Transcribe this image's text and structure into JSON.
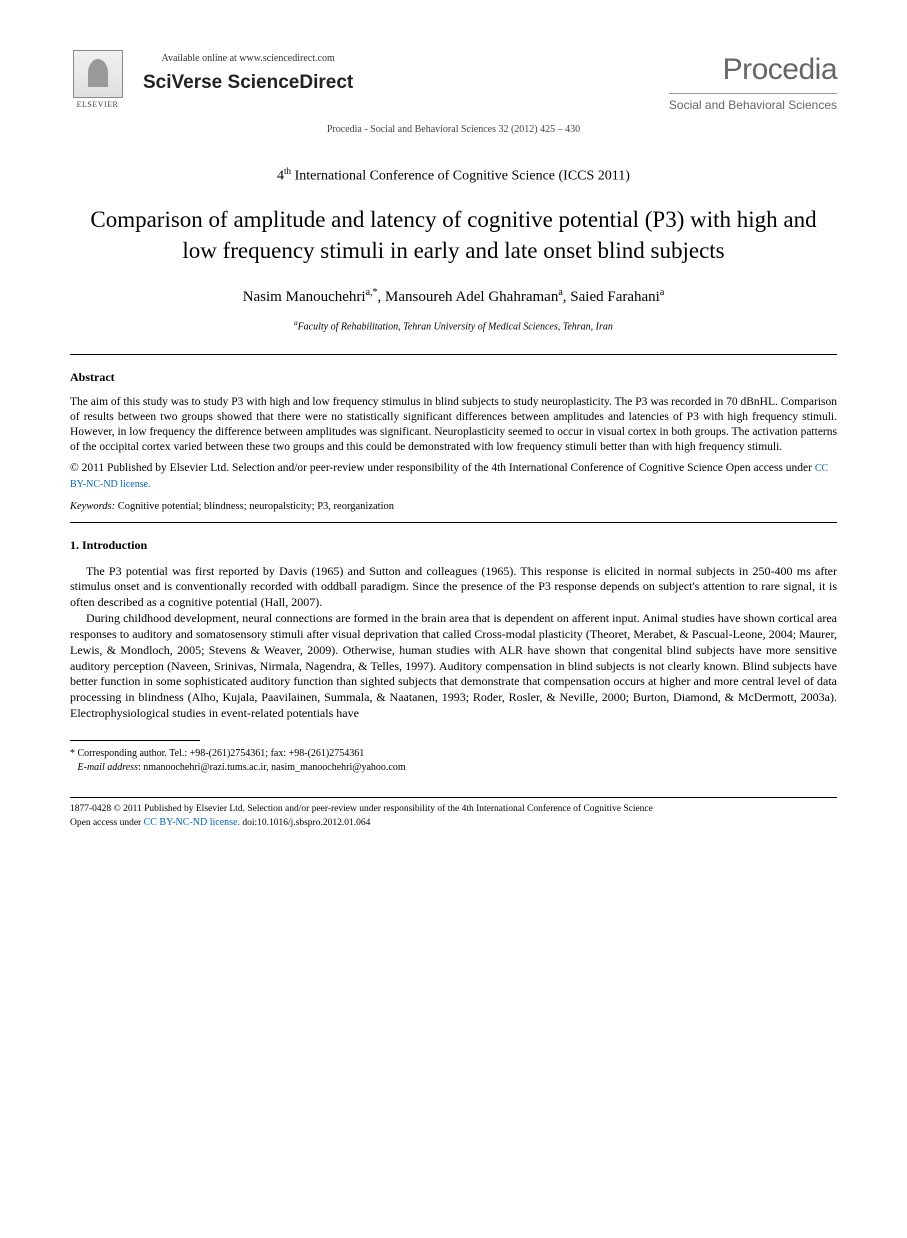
{
  "header": {
    "elsevier_label": "ELSEVIER",
    "available_text": "Available online at www.sciencedirect.com",
    "sciverse_prefix": "SciVerse ",
    "sciverse_name": "ScienceDirect",
    "procedia_name": "Procedia",
    "procedia_sub": "Social and Behavioral Sciences",
    "citation": "Procedia - Social and Behavioral Sciences 32 (2012) 425 – 430"
  },
  "conference": {
    "ordinal": "4",
    "ordinal_sup": "th",
    "name": " International Conference of Cognitive Science (ICCS 2011)"
  },
  "title": "Comparison of amplitude and latency of cognitive potential (P3) with high and low frequency stimuli in early and late onset blind subjects",
  "authors": {
    "a1_name": "Nasim Manouchehri",
    "a1_sup": "a,*",
    "a2_name": ", Mansoureh Adel Ghahraman",
    "a2_sup": "a",
    "a3_name": ", Saied Farahani",
    "a3_sup": "a"
  },
  "affiliation": {
    "sup": "a",
    "text": "Faculty of Rehabilitation, Tehran University of Medical Sciences, Tehran, Iran"
  },
  "abstract": {
    "heading": "Abstract",
    "text": "The aim of this study was to study P3 with high and low frequency stimulus in blind subjects to study neuroplasticity. The P3 was recorded in 70 dBnHL. Comparison of results between two groups showed that there were no statistically significant differences between amplitudes and latencies of P3 with high frequency stimuli. However, in low frequency the difference between amplitudes was significant. Neuroplasticity seemed to occur in visual cortex in both groups. The activation patterns of the occipital cortex varied between these two groups and this could be demonstrated with low frequency stimuli better than with high frequency stimuli."
  },
  "copyright": {
    "line": "© 2011 Published by Elsevier Ltd. Selection and/or peer-review under responsibility of the 4th International Conference of Cognitive Science",
    "open_access_prefix": " Open access under ",
    "license_text": "CC BY-NC-ND license."
  },
  "keywords": {
    "label": "Keywords:",
    "text": " Cognitive potential; blindness; neuropalsticity; P3, reorganization"
  },
  "intro": {
    "heading": "1. Introduction",
    "p1": "The P3 potential was first reported by Davis (1965) and Sutton and colleagues (1965). This response is elicited in normal subjects in 250-400 ms after stimulus onset and is conventionally recorded with oddball paradigm. Since the presence of the P3 response depends on subject's attention to rare signal, it is often described as a cognitive potential (Hall, 2007).",
    "p2": "During childhood development, neural connections are formed in the brain area that is dependent on afferent input. Animal studies have shown cortical area responses to auditory and somatosensory stimuli after visual deprivation that called Cross-modal plasticity (Theoret, Merabet, & Pascual-Leone, 2004; Maurer, Lewis, & Mondloch, 2005; Stevens & Weaver, 2009). Otherwise, human studies with ALR have shown that congenital blind subjects have more sensitive auditory perception (Naveen, Srinivas, Nirmala, Nagendra, & Telles, 1997). Auditory compensation in blind subjects is not clearly known. Blind subjects have better function in some sophisticated auditory function than sighted subjects that demonstrate that compensation occurs at higher and more central level of data processing in blindness (Alho, Kujala, Paavilainen, Summala, & Naatanen, 1993; Roder, Rosler, & Neville, 2000; Burton, Diamond, & McDermott, 2003a). Electrophysiological studies in event-related potentials have"
  },
  "footnote": {
    "corr_label": "* Corresponding author. ",
    "corr_text": "Tel.: +98-(261)2754361; fax: +98-(261)2754361",
    "email_label": "E-mail address",
    "email_text": ": nmanoochehri@razi.tums.ac.ir, nasim_manoochehri@yahoo.com"
  },
  "footer": {
    "line1": "1877-0428 © 2011 Published by Elsevier Ltd. Selection and/or peer-review under responsibility of the 4th International Conference of Cognitive Science",
    "open_prefix": "Open access under ",
    "license_text": "CC BY-NC-ND license.",
    "doi": " doi:10.1016/j.sbspro.2012.01.064"
  },
  "colors": {
    "text": "#000000",
    "link": "#0066cc",
    "gray": "#666666",
    "background": "#ffffff"
  }
}
